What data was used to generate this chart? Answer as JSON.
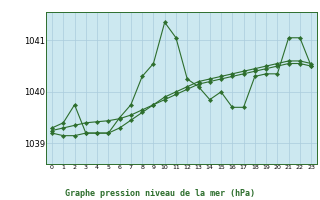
{
  "title": "Graphe pression niveau de la mer (hPa)",
  "background_color": "#cce8f0",
  "outer_background": "#ffffff",
  "grid_color": "#aaccdd",
  "line_color": "#2d6e2d",
  "x_labels": [
    "0",
    "1",
    "2",
    "3",
    "4",
    "5",
    "6",
    "7",
    "8",
    "9",
    "10",
    "11",
    "12",
    "13",
    "14",
    "15",
    "16",
    "17",
    "18",
    "19",
    "20",
    "21",
    "22",
    "23"
  ],
  "ylim": [
    1038.6,
    1041.55
  ],
  "yticks": [
    1039,
    1040,
    1041
  ],
  "series": [
    [
      1039.3,
      1039.4,
      1039.75,
      1039.2,
      1039.2,
      1039.2,
      1039.5,
      1039.75,
      1040.3,
      1040.55,
      1041.35,
      1041.05,
      1040.25,
      1040.1,
      1039.85,
      1040.0,
      1039.7,
      1039.7,
      1040.3,
      1040.35,
      1040.35,
      1041.05,
      1041.05,
      1040.5
    ],
    [
      1039.2,
      1039.15,
      1039.15,
      1039.2,
      1039.2,
      1039.2,
      1039.3,
      1039.45,
      1039.6,
      1039.75,
      1039.9,
      1040.0,
      1040.1,
      1040.2,
      1040.25,
      1040.3,
      1040.35,
      1040.4,
      1040.45,
      1040.5,
      1040.55,
      1040.6,
      1040.6,
      1040.55
    ],
    [
      1039.25,
      1039.3,
      1039.35,
      1039.4,
      1039.42,
      1039.44,
      1039.48,
      1039.55,
      1039.65,
      1039.75,
      1039.85,
      1039.95,
      1040.05,
      1040.15,
      1040.2,
      1040.25,
      1040.3,
      1040.35,
      1040.4,
      1040.45,
      1040.5,
      1040.55,
      1040.55,
      1040.5
    ]
  ]
}
